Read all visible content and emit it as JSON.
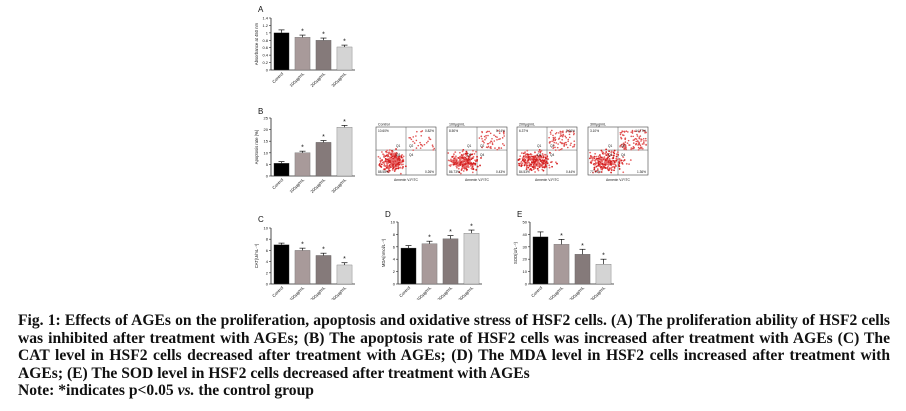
{
  "figure": {
    "panel_labels": [
      "A",
      "B",
      "C",
      "D",
      "E"
    ],
    "groups": [
      "Control",
      "100μg/mL",
      "200μg/mL",
      "300μg/mL"
    ],
    "bar_colors": [
      "#000000",
      "#a89a9a",
      "#857a7a",
      "#d4d4d4"
    ],
    "significance_marker": "*",
    "flow_cytometry": {
      "xlabel": "Annexin V-FITC",
      "panels": [
        {
          "title": "Control",
          "ul": "10.60%",
          "ur": "0.82%",
          "ll": "88.58%",
          "lr": "0.26%"
        },
        {
          "title": "100μg/mL",
          "ul": "8.50%",
          "ur": "5.14%",
          "ll": "86.73%",
          "lr": "0.43%"
        },
        {
          "title": "200μg/mL",
          "ul": "6.37%",
          "ur": "8.66%",
          "ll": "84.53%",
          "lr": "0.44%"
        },
        {
          "title": "300μg/mL",
          "ul": "3.10%",
          "ur": "14.77%",
          "ll": "77.74%",
          "lr": "1.36%"
        }
      ],
      "quadrant_ids": [
        "Q1",
        "Q2",
        "Q3",
        "Q4"
      ]
    }
  },
  "chart_data": [
    {
      "id": "A",
      "type": "bar",
      "categories": [
        "Control",
        "100μg/mL",
        "200μg/mL",
        "300μg/mL"
      ],
      "values": [
        1.0,
        0.88,
        0.8,
        0.62
      ],
      "errors": [
        0.08,
        0.06,
        0.06,
        0.05
      ],
      "significant": [
        false,
        true,
        true,
        true
      ],
      "ylabel": "Absorbance at 450 nm",
      "ylim": [
        0,
        1.4
      ],
      "yticks": [
        0,
        0.2,
        0.4,
        0.6,
        0.8,
        1.0,
        1.2,
        1.4
      ]
    },
    {
      "id": "B",
      "type": "bar",
      "categories": [
        "Control",
        "100μg/mL",
        "200μg/mL",
        "300μg/mL"
      ],
      "values": [
        5.5,
        10.0,
        14.5,
        21.0
      ],
      "errors": [
        0.7,
        0.7,
        0.8,
        0.8
      ],
      "significant": [
        false,
        true,
        true,
        true
      ],
      "ylabel": "Apoptosis rate (%)",
      "ylim": [
        0,
        25
      ],
      "yticks": [
        0,
        5,
        10,
        15,
        20,
        25
      ]
    },
    {
      "id": "C",
      "type": "bar",
      "categories": [
        "Control",
        "100μg/mL",
        "200μg/mL",
        "300μg/mL"
      ],
      "values": [
        7.0,
        6.0,
        5.1,
        3.4
      ],
      "errors": [
        0.3,
        0.4,
        0.4,
        0.4
      ],
      "significant": [
        false,
        true,
        true,
        true
      ],
      "ylabel": "CAT(U/mL⁻¹)",
      "ylim": [
        0,
        10
      ],
      "yticks": [
        0,
        2,
        4,
        6,
        8,
        10
      ]
    },
    {
      "id": "D",
      "type": "bar",
      "categories": [
        "Control",
        "100μg/mL",
        "200μg/mL",
        "300μg/mL"
      ],
      "values": [
        5.8,
        6.5,
        7.3,
        8.2
      ],
      "errors": [
        0.4,
        0.4,
        0.5,
        0.5
      ],
      "significant": [
        false,
        true,
        true,
        true
      ],
      "ylabel": "MDA(nmol/L⁻¹)",
      "ylim": [
        0,
        10
      ],
      "yticks": [
        0,
        2,
        4,
        6,
        8,
        10
      ]
    },
    {
      "id": "E",
      "type": "bar",
      "categories": [
        "Control",
        "100μg/mL",
        "200μg/mL",
        "300μg/mL"
      ],
      "values": [
        38,
        32,
        24,
        16
      ],
      "errors": [
        4,
        4,
        4,
        4
      ],
      "significant": [
        false,
        true,
        true,
        true
      ],
      "ylabel": "SOD(U/L⁻¹)",
      "ylim": [
        0,
        50
      ],
      "yticks": [
        0,
        10,
        20,
        30,
        40,
        50
      ]
    }
  ],
  "caption": {
    "text": "Fig. 1: Effects of AGEs on the proliferation, apoptosis and oxidative stress of HSF2 cells. (A) The proliferation ability of HSF2 cells was inhibited after treatment with AGEs; (B) The apoptosis rate of HSF2 cells was increased after treatment with AGEs (C) The CAT level in HSF2 cells decreased after treatment with AGEs; (D) The MDA level in HSF2 cells increased after treatment with AGEs; (E) The SOD level in HSF2 cells decreased after treatment with AGEs",
    "note_prefix": "Note: *indicates p<0.05 ",
    "note_italic": "vs.",
    "note_suffix": " the control group"
  }
}
